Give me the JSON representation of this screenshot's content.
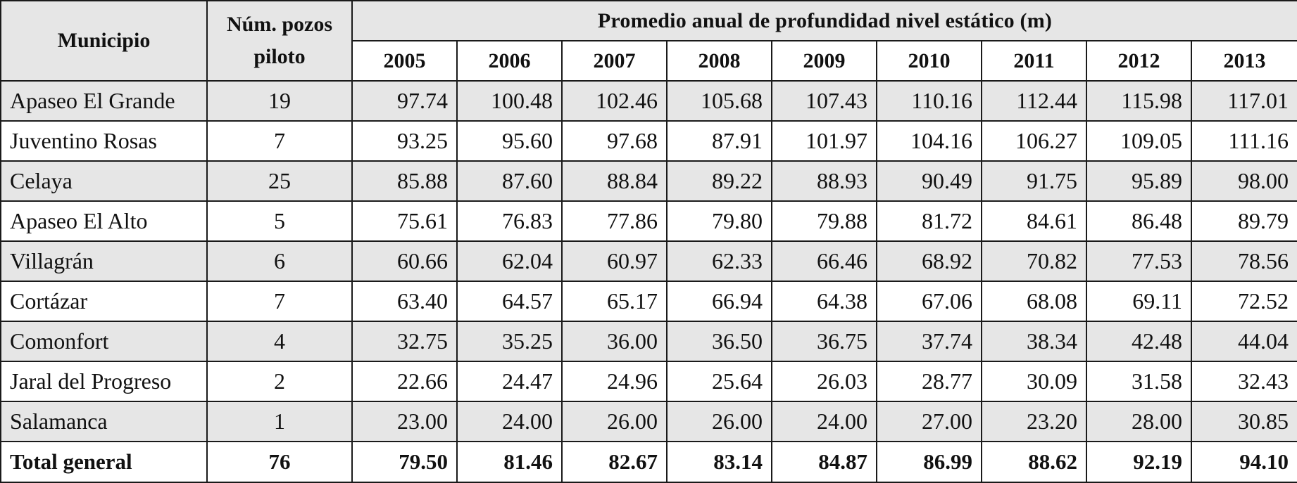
{
  "table": {
    "header": {
      "municipio": "Municipio",
      "num_pozos_line1": "Núm. pozos",
      "num_pozos_line2": "piloto",
      "group_title": "Promedio anual de profundidad nivel estático (m)",
      "years": [
        "2005",
        "2006",
        "2007",
        "2008",
        "2009",
        "2010",
        "2011",
        "2012",
        "2013"
      ]
    },
    "rows": [
      {
        "municipio": "Apaseo El Grande",
        "num_pozos": "19",
        "values": [
          "97.74",
          "100.48",
          "102.46",
          "105.68",
          "107.43",
          "110.16",
          "112.44",
          "115.98",
          "117.01"
        ]
      },
      {
        "municipio": "Juventino Rosas",
        "num_pozos": "7",
        "values": [
          "93.25",
          "95.60",
          "97.68",
          "87.91",
          "101.97",
          "104.16",
          "106.27",
          "109.05",
          "111.16"
        ]
      },
      {
        "municipio": "Celaya",
        "num_pozos": "25",
        "values": [
          "85.88",
          "87.60",
          "88.84",
          "89.22",
          "88.93",
          "90.49",
          "91.75",
          "95.89",
          "98.00"
        ]
      },
      {
        "municipio": "Apaseo El Alto",
        "num_pozos": "5",
        "values": [
          "75.61",
          "76.83",
          "77.86",
          "79.80",
          "79.88",
          "81.72",
          "84.61",
          "86.48",
          "89.79"
        ]
      },
      {
        "municipio": "Villagrán",
        "num_pozos": "6",
        "values": [
          "60.66",
          "62.04",
          "60.97",
          "62.33",
          "66.46",
          "68.92",
          "70.82",
          "77.53",
          "78.56"
        ]
      },
      {
        "municipio": "Cortázar",
        "num_pozos": "7",
        "values": [
          "63.40",
          "64.57",
          "65.17",
          "66.94",
          "64.38",
          "67.06",
          "68.08",
          "69.11",
          "72.52"
        ]
      },
      {
        "municipio": "Comonfort",
        "num_pozos": "4",
        "values": [
          "32.75",
          "35.25",
          "36.00",
          "36.50",
          "36.75",
          "37.74",
          "38.34",
          "42.48",
          "44.04"
        ]
      },
      {
        "municipio": "Jaral del Progreso",
        "num_pozos": "2",
        "values": [
          "22.66",
          "24.47",
          "24.96",
          "25.64",
          "26.03",
          "28.77",
          "30.09",
          "31.58",
          "32.43"
        ]
      },
      {
        "municipio": "Salamanca",
        "num_pozos": "1",
        "values": [
          "23.00",
          "24.00",
          "26.00",
          "26.00",
          "24.00",
          "27.00",
          "23.20",
          "28.00",
          "30.85"
        ]
      }
    ],
    "total": {
      "municipio": "Total general",
      "num_pozos": "76",
      "values": [
        "79.50",
        "81.46",
        "82.67",
        "83.14",
        "84.87",
        "86.99",
        "88.62",
        "92.19",
        "94.10"
      ]
    }
  },
  "colors": {
    "shade": "#e6e6e6",
    "plain": "#ffffff",
    "border": "#1a1a1a",
    "text": "#111111"
  }
}
